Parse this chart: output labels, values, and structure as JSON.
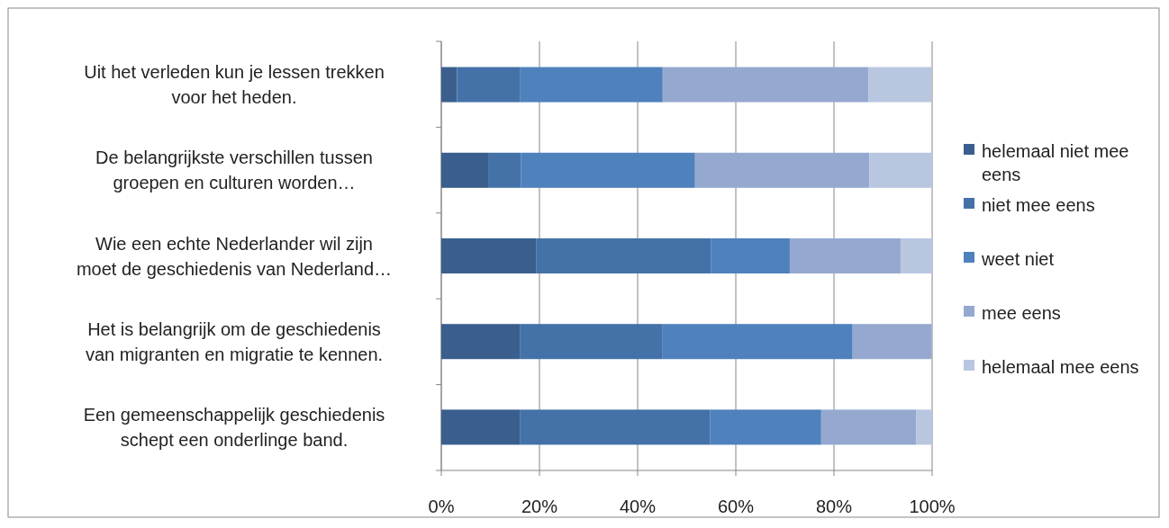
{
  "chart_data": {
    "type": "bar",
    "orientation": "horizontal",
    "stacked": true,
    "categories": [
      "Uit het verleden kun je lessen trekken voor het heden.",
      "De belangrijkste verschillen tussen groepen en culturen worden…",
      "Wie een echte Nederlander wil zijn moet de geschiedenis van Nederland…",
      "Het is belangrijk om de geschiedenis van migranten en migratie te kennen.",
      "Een gemeenschappelijk geschiedenis schept een onderlinge band."
    ],
    "series": [
      {
        "name": "helemaal niet mee eens",
        "color": "#3a5f8f",
        "values": [
          3.2,
          9.7,
          19.4,
          16.1,
          16.1
        ]
      },
      {
        "name": "niet mee eens",
        "color": "#4472a8",
        "values": [
          12.9,
          6.5,
          35.5,
          29,
          38.7
        ]
      },
      {
        "name": "weet niet",
        "color": "#4f81bd",
        "values": [
          29,
          35.5,
          16.1,
          38.7,
          22.6
        ]
      },
      {
        "name": "mee eens",
        "color": "#95a9d0",
        "values": [
          41.9,
          35.5,
          22.6,
          16.1,
          19.4
        ]
      },
      {
        "name": "helemaal mee eens",
        "color": "#b9c6e0",
        "values": [
          12.9,
          12.9,
          6.5,
          0,
          3.2
        ]
      }
    ],
    "xlim": [
      0,
      100
    ],
    "xticks": [
      {
        "value": 0,
        "label": "0%"
      },
      {
        "value": 20,
        "label": "20%"
      },
      {
        "value": 40,
        "label": "40%"
      },
      {
        "value": 60,
        "label": "60%"
      },
      {
        "value": 80,
        "label": "80%"
      },
      {
        "value": 100,
        "label": "100%"
      }
    ],
    "grid": "x",
    "legend": "right"
  }
}
